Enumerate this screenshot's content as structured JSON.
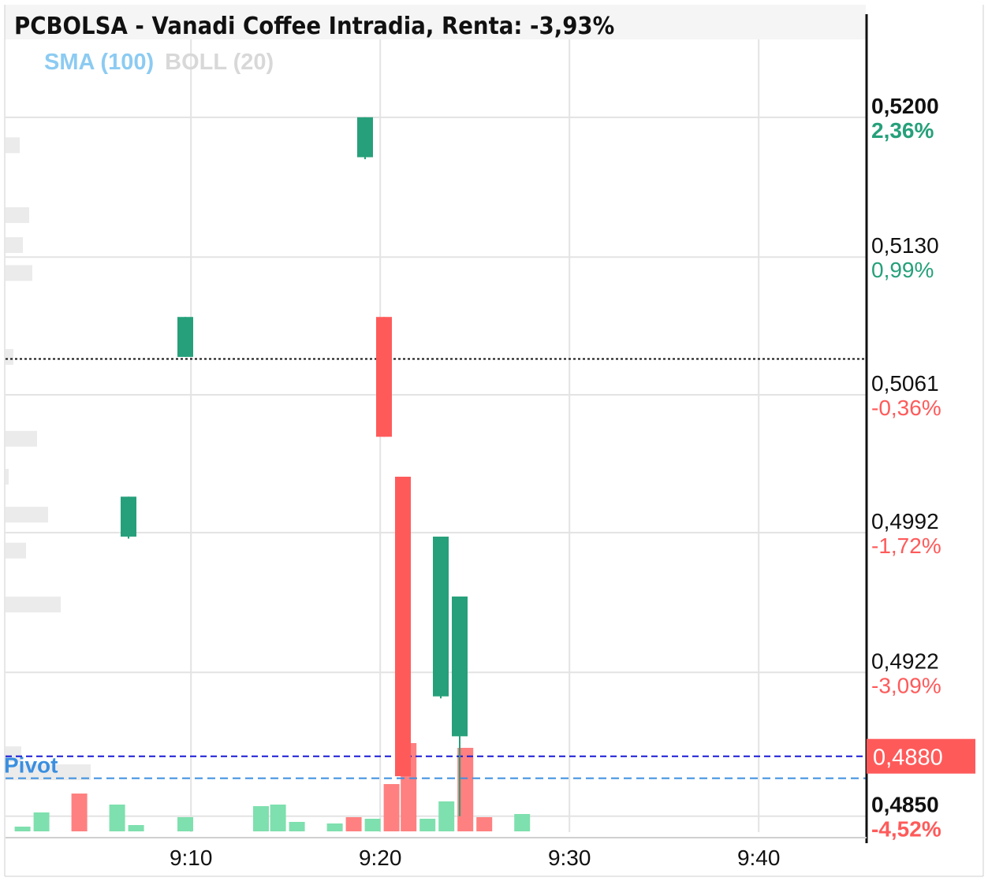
{
  "title": "PCBOLSA - Vanadi Coffee Intradia, Renta: -3,93%",
  "indicators": [
    {
      "label": "SMA (100)",
      "color": "#8ccbf2"
    },
    {
      "label": "BOLL (20)",
      "color": "#d8d8d8"
    }
  ],
  "colors": {
    "up": "#26a07a",
    "down": "#ff5a5a",
    "volume_up": "#7ee0ae",
    "volume_down": "#ff8080",
    "grid": "#e3e3e3",
    "axis": "#111111",
    "current_price": "#1a1ad6",
    "pivot": "#3a8fe0",
    "reference": "#111111",
    "volume_profile": "#ebebeb"
  },
  "chart_data": {
    "type": "candlestick",
    "x_tick_labels": [
      "9:10",
      "9:20",
      "9:30",
      "9:40"
    ],
    "y_axis": [
      {
        "price": "0,5200",
        "pct": "2,36%",
        "value": 0.52,
        "tone": "up",
        "bold": true
      },
      {
        "price": "0,5130",
        "pct": "0,99%",
        "value": 0.513,
        "tone": "up",
        "bold": false
      },
      {
        "price": "0,5061",
        "pct": "-0,36%",
        "value": 0.5061,
        "tone": "down",
        "bold": false
      },
      {
        "price": "0,4992",
        "pct": "-1,72%",
        "value": 0.4992,
        "tone": "down",
        "bold": false
      },
      {
        "price": "0,4922",
        "pct": "-3,09%",
        "value": 0.4922,
        "tone": "down",
        "bold": false
      },
      {
        "price": "0,4850",
        "pct": "-4,52%",
        "value": 0.485,
        "tone": "down",
        "bold": true
      }
    ],
    "ylim": [
      0.4842,
      0.5239
    ],
    "time_range_min": [
      540.2,
      585.7
    ],
    "reference_price": 0.5079,
    "current_price": {
      "label": "0,4880",
      "value": 0.488
    },
    "pivot": {
      "label": "Pivot",
      "value": 0.4869
    },
    "candles": [
      {
        "time": 546.7,
        "open": 0.499,
        "high": 0.501,
        "low": 0.4989,
        "close": 0.501
      },
      {
        "time": 549.7,
        "open": 0.508,
        "high": 0.51,
        "low": 0.508,
        "close": 0.51
      },
      {
        "time": 559.2,
        "open": 0.518,
        "high": 0.52,
        "low": 0.5179,
        "close": 0.52
      },
      {
        "time": 560.2,
        "open": 0.51,
        "high": 0.51,
        "low": 0.504,
        "close": 0.504
      },
      {
        "time": 561.2,
        "open": 0.502,
        "high": 0.502,
        "low": 0.487,
        "close": 0.487
      },
      {
        "time": 563.2,
        "open": 0.491,
        "high": 0.499,
        "low": 0.4909,
        "close": 0.499
      },
      {
        "time": 564.2,
        "open": 0.489,
        "high": 0.496,
        "low": 0.485,
        "close": 0.496
      }
    ],
    "volume": [
      {
        "time": 541.1,
        "height": 6,
        "tone": "up"
      },
      {
        "time": 542.1,
        "height": 24,
        "tone": "up"
      },
      {
        "time": 544.1,
        "height": 48,
        "tone": "down"
      },
      {
        "time": 546.1,
        "height": 34,
        "tone": "up"
      },
      {
        "time": 547.1,
        "height": 8,
        "tone": "up"
      },
      {
        "time": 549.7,
        "height": 18,
        "tone": "up"
      },
      {
        "time": 553.7,
        "height": 32,
        "tone": "up"
      },
      {
        "time": 554.6,
        "height": 34,
        "tone": "up"
      },
      {
        "time": 555.6,
        "height": 12,
        "tone": "up"
      },
      {
        "time": 557.6,
        "height": 10,
        "tone": "up"
      },
      {
        "time": 558.6,
        "height": 18,
        "tone": "down"
      },
      {
        "time": 559.6,
        "height": 16,
        "tone": "up"
      },
      {
        "time": 560.6,
        "height": 60,
        "tone": "down"
      },
      {
        "time": 561.5,
        "height": 112,
        "tone": "down"
      },
      {
        "time": 562.5,
        "height": 16,
        "tone": "up"
      },
      {
        "time": 563.5,
        "height": 38,
        "tone": "up"
      },
      {
        "time": 564.5,
        "height": 106,
        "tone": "down"
      },
      {
        "time": 565.5,
        "height": 18,
        "tone": "down"
      },
      {
        "time": 567.5,
        "height": 22,
        "tone": "up"
      }
    ],
    "volume_profile": [
      {
        "price": 0.5186,
        "length": 18
      },
      {
        "price": 0.5151,
        "length": 30
      },
      {
        "price": 0.5136,
        "length": 22
      },
      {
        "price": 0.5122,
        "length": 34
      },
      {
        "price": 0.508,
        "length": 10
      },
      {
        "price": 0.5039,
        "length": 40
      },
      {
        "price": 0.502,
        "length": 4
      },
      {
        "price": 0.5001,
        "length": 54
      },
      {
        "price": 0.4983,
        "length": 26
      },
      {
        "price": 0.4956,
        "length": 70
      },
      {
        "price": 0.4881,
        "length": 20
      },
      {
        "price": 0.4872,
        "length": 108
      }
    ]
  }
}
